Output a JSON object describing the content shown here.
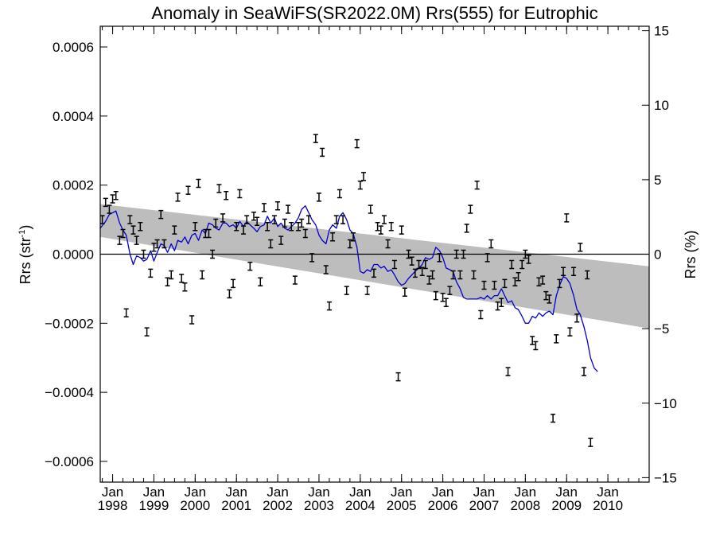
{
  "chart_data": {
    "type": "scatter",
    "title": "Anomaly in SeaWiFS(SR2022.0M) Rrs(555) for Eutrophic",
    "ylabel": "Rrs (str",
    "ylabel_sup": "-1",
    "ylabel_close": ")",
    "y2label": "Rrs (%)",
    "ylim": [
      -0.00066,
      0.00066
    ],
    "y2lim": [
      -15.3,
      15.3
    ],
    "xlim": [
      1997.7,
      2011.0
    ],
    "yticks": [
      -0.0006,
      -0.0004,
      -0.0002,
      0.0,
      0.0002,
      0.0004,
      0.0006
    ],
    "ytick_labels": [
      "−0.0006",
      "−0.0004",
      "−0.0002",
      "0.0000",
      "0.0002",
      "0.0004",
      "0.0006"
    ],
    "y2ticks": [
      -15,
      -10,
      -5,
      0,
      5,
      10,
      15
    ],
    "y2tick_labels": [
      "−15",
      "−10",
      "−5",
      "0",
      "5",
      "10",
      "15"
    ],
    "xticks": [
      1998,
      1999,
      2000,
      2001,
      2002,
      2003,
      2004,
      2005,
      2006,
      2007,
      2008,
      2009,
      2010
    ],
    "xtick_month": "Jan",
    "xtick_years": [
      "1998",
      "1999",
      "2000",
      "2001",
      "2002",
      "2003",
      "2004",
      "2005",
      "2006",
      "2007",
      "2008",
      "2009",
      "2010"
    ],
    "reference_line": 0.0,
    "error_half_width": 1.15e-05,
    "band": {
      "x": [
        1997.7,
        2011.0
      ],
      "upper": [
        0.000145,
        -3.5e-05
      ],
      "lower": [
        5e-05,
        -0.000215
      ]
    },
    "points": [
      [
        1997.75,
        0.0001
      ],
      [
        1997.83,
        0.00015
      ],
      [
        1997.92,
        0.00013
      ],
      [
        1998.0,
        0.00016
      ],
      [
        1998.08,
        0.00017
      ],
      [
        1998.17,
        4e-05
      ],
      [
        1998.25,
        6e-05
      ],
      [
        1998.33,
        -0.00017
      ],
      [
        1998.42,
        0.0001
      ],
      [
        1998.5,
        7e-05
      ],
      [
        1998.58,
        4e-05
      ],
      [
        1998.67,
        8e-05
      ],
      [
        1998.75,
        0.0
      ],
      [
        1998.83,
        -0.000225
      ],
      [
        1998.92,
        -5.5e-05
      ],
      [
        1999.0,
        2e-05
      ],
      [
        1999.08,
        3e-05
      ],
      [
        1999.17,
        0.000115
      ],
      [
        1999.25,
        3e-05
      ],
      [
        1999.33,
        -8e-05
      ],
      [
        1999.42,
        -6e-05
      ],
      [
        1999.5,
        7e-05
      ],
      [
        1999.58,
        0.000165
      ],
      [
        1999.67,
        -7e-05
      ],
      [
        1999.75,
        -9.5e-05
      ],
      [
        1999.83,
        0.000185
      ],
      [
        1999.92,
        -0.00019
      ],
      [
        2000.0,
        8e-05
      ],
      [
        2000.08,
        0.000205
      ],
      [
        2000.17,
        -6e-05
      ],
      [
        2000.25,
        6e-05
      ],
      [
        2000.33,
        6e-05
      ],
      [
        2000.42,
        0.0
      ],
      [
        2000.5,
        9e-05
      ],
      [
        2000.58,
        0.00019
      ],
      [
        2000.67,
        0.000105
      ],
      [
        2000.75,
        0.00017
      ],
      [
        2000.83,
        -0.000115
      ],
      [
        2000.92,
        -8.5e-05
      ],
      [
        2001.0,
        8e-05
      ],
      [
        2001.08,
        0.000175
      ],
      [
        2001.17,
        7e-05
      ],
      [
        2001.25,
        0.0001
      ],
      [
        2001.33,
        -3.5e-05
      ],
      [
        2001.42,
        0.00011
      ],
      [
        2001.5,
        9.5e-05
      ],
      [
        2001.58,
        -8e-05
      ],
      [
        2001.67,
        0.000135
      ],
      [
        2001.75,
        8e-05
      ],
      [
        2001.83,
        3e-05
      ],
      [
        2001.92,
        0.0001
      ],
      [
        2002.0,
        0.00014
      ],
      [
        2002.08,
        4e-05
      ],
      [
        2002.17,
        9e-05
      ],
      [
        2002.25,
        0.00013
      ],
      [
        2002.33,
        8e-05
      ],
      [
        2002.42,
        -7.5e-05
      ],
      [
        2002.5,
        8e-05
      ],
      [
        2002.58,
        9e-05
      ],
      [
        2002.67,
        6e-05
      ],
      [
        2002.75,
        0.0001
      ],
      [
        2002.83,
        -1e-05
      ],
      [
        2002.92,
        0.000335
      ],
      [
        2003.0,
        0.000165
      ],
      [
        2003.08,
        0.000295
      ],
      [
        2003.17,
        -4.5e-05
      ],
      [
        2003.25,
        -0.00015
      ],
      [
        2003.33,
        5e-05
      ],
      [
        2003.42,
        0.0001
      ],
      [
        2003.5,
        0.000175
      ],
      [
        2003.58,
        0.0001
      ],
      [
        2003.67,
        -0.000105
      ],
      [
        2003.75,
        3e-05
      ],
      [
        2003.83,
        5e-05
      ],
      [
        2003.92,
        0.00032
      ],
      [
        2004.0,
        0.0002
      ],
      [
        2004.08,
        0.000225
      ],
      [
        2004.17,
        -0.000105
      ],
      [
        2004.25,
        0.00013
      ],
      [
        2004.33,
        -5.5e-05
      ],
      [
        2004.42,
        8e-05
      ],
      [
        2004.5,
        7e-05
      ],
      [
        2004.58,
        0.0001
      ],
      [
        2004.67,
        3e-05
      ],
      [
        2004.75,
        8e-05
      ],
      [
        2004.83,
        -3e-05
      ],
      [
        2004.92,
        -0.000355
      ],
      [
        2005.0,
        7e-05
      ],
      [
        2005.08,
        -0.00011
      ],
      [
        2005.17,
        0.0
      ],
      [
        2005.25,
        -2e-05
      ],
      [
        2005.33,
        -5.5e-05
      ],
      [
        2005.42,
        -3e-05
      ],
      [
        2005.5,
        -5e-05
      ],
      [
        2005.58,
        -3e-05
      ],
      [
        2005.67,
        -7.5e-05
      ],
      [
        2005.75,
        -6e-05
      ],
      [
        2005.83,
        -0.00012
      ],
      [
        2005.92,
        -1e-05
      ],
      [
        2006.0,
        -0.000125
      ],
      [
        2006.08,
        -0.00014
      ],
      [
        2006.17,
        -0.000105
      ],
      [
        2006.25,
        -6e-05
      ],
      [
        2006.33,
        0.0
      ],
      [
        2006.42,
        -6e-05
      ],
      [
        2006.5,
        0.0
      ],
      [
        2006.58,
        7.5e-05
      ],
      [
        2006.67,
        0.00013
      ],
      [
        2006.75,
        -6e-05
      ],
      [
        2006.83,
        0.0002
      ],
      [
        2006.92,
        -0.000175
      ],
      [
        2007.0,
        -9e-05
      ],
      [
        2007.08,
        -1e-05
      ],
      [
        2007.17,
        3e-05
      ],
      [
        2007.25,
        -9e-05
      ],
      [
        2007.33,
        -0.00015
      ],
      [
        2007.42,
        -0.00014
      ],
      [
        2007.5,
        -8.5e-05
      ],
      [
        2007.58,
        -0.00034
      ],
      [
        2007.67,
        -3e-05
      ],
      [
        2007.75,
        -8e-05
      ],
      [
        2007.83,
        -6.5e-05
      ],
      [
        2007.92,
        -3e-05
      ],
      [
        2008.0,
        0.0
      ],
      [
        2008.08,
        -1.5e-05
      ],
      [
        2008.17,
        -0.00025
      ],
      [
        2008.25,
        -0.000265
      ],
      [
        2008.33,
        -8e-05
      ],
      [
        2008.42,
        -7.5e-05
      ],
      [
        2008.5,
        -0.00012
      ],
      [
        2008.58,
        -0.00013
      ],
      [
        2008.67,
        -0.000475
      ],
      [
        2008.75,
        -0.000245
      ],
      [
        2008.83,
        -8.5e-05
      ],
      [
        2008.92,
        -5e-05
      ],
      [
        2009.0,
        0.000105
      ],
      [
        2009.08,
        -0.000225
      ],
      [
        2009.17,
        -5e-05
      ],
      [
        2009.25,
        -0.000185
      ],
      [
        2009.33,
        2e-05
      ],
      [
        2009.42,
        -0.00034
      ],
      [
        2009.5,
        -6e-05
      ],
      [
        2009.58,
        -0.000545
      ]
    ],
    "trend_line": [
      [
        1997.7,
        7.5e-05
      ],
      [
        1997.83,
        9.5e-05
      ],
      [
        1997.92,
        0.000115
      ],
      [
        1998.0,
        0.00012
      ],
      [
        1998.08,
        0.000125
      ],
      [
        1998.17,
        9e-05
      ],
      [
        1998.25,
        7e-05
      ],
      [
        1998.33,
        5.5e-05
      ],
      [
        1998.42,
        0.0
      ],
      [
        1998.5,
        -3e-05
      ],
      [
        1998.58,
        -5e-06
      ],
      [
        1998.67,
        -1e-05
      ],
      [
        1998.75,
        -2e-05
      ],
      [
        1998.83,
        -1.5e-05
      ],
      [
        1998.92,
        1e-05
      ],
      [
        1999.0,
        -2e-05
      ],
      [
        1999.08,
        5e-06
      ],
      [
        1999.17,
        3e-05
      ],
      [
        1999.25,
        2.5e-05
      ],
      [
        1999.33,
        5e-06
      ],
      [
        1999.42,
        3e-05
      ],
      [
        1999.5,
        1e-05
      ],
      [
        1999.58,
        4e-05
      ],
      [
        1999.67,
        3.5e-05
      ],
      [
        1999.75,
        5e-05
      ],
      [
        1999.83,
        3e-05
      ],
      [
        1999.92,
        5.5e-05
      ],
      [
        2000.0,
        6e-05
      ],
      [
        2000.08,
        4e-05
      ],
      [
        2000.17,
        7e-05
      ],
      [
        2000.25,
        6e-05
      ],
      [
        2000.33,
        9e-05
      ],
      [
        2000.42,
        8.5e-05
      ],
      [
        2000.5,
        7.5e-05
      ],
      [
        2000.58,
        7e-05
      ],
      [
        2000.67,
        9e-05
      ],
      [
        2000.75,
        9e-05
      ],
      [
        2000.83,
        8e-05
      ],
      [
        2000.92,
        8.5e-05
      ],
      [
        2001.0,
        7.5e-05
      ],
      [
        2001.08,
        9.5e-05
      ],
      [
        2001.17,
        8e-05
      ],
      [
        2001.25,
        9.5e-05
      ],
      [
        2001.33,
        8.5e-05
      ],
      [
        2001.42,
        7.5e-05
      ],
      [
        2001.5,
        6.5e-05
      ],
      [
        2001.58,
        8e-05
      ],
      [
        2001.67,
        8.5e-05
      ],
      [
        2001.75,
        0.00011
      ],
      [
        2001.83,
        9e-05
      ],
      [
        2001.92,
        0.000105
      ],
      [
        2002.0,
        8e-05
      ],
      [
        2002.08,
        9e-05
      ],
      [
        2002.17,
        7.5e-05
      ],
      [
        2002.25,
        7e-05
      ],
      [
        2002.33,
        8e-05
      ],
      [
        2002.42,
        9e-05
      ],
      [
        2002.5,
        0.000105
      ],
      [
        2002.58,
        0.00013
      ],
      [
        2002.67,
        0.00014
      ],
      [
        2002.75,
        0.00012
      ],
      [
        2002.83,
        0.0001
      ],
      [
        2002.92,
        8.5e-05
      ],
      [
        2003.0,
        5.5e-05
      ],
      [
        2003.08,
        4e-05
      ],
      [
        2003.17,
        3e-05
      ],
      [
        2003.25,
        7e-05
      ],
      [
        2003.33,
        8.5e-05
      ],
      [
        2003.42,
        7.5e-05
      ],
      [
        2003.5,
        0.00011
      ],
      [
        2003.58,
        0.00012
      ],
      [
        2003.67,
        0.0001
      ],
      [
        2003.75,
        7e-05
      ],
      [
        2003.83,
        6e-05
      ],
      [
        2003.92,
        2e-05
      ],
      [
        2004.0,
        -5e-05
      ],
      [
        2004.08,
        -5.5e-05
      ],
      [
        2004.17,
        -4.5e-05
      ],
      [
        2004.25,
        -5e-05
      ],
      [
        2004.33,
        -3e-05
      ],
      [
        2004.42,
        -3e-05
      ],
      [
        2004.5,
        -4e-05
      ],
      [
        2004.58,
        -3.5e-05
      ],
      [
        2004.67,
        -5e-05
      ],
      [
        2004.75,
        -4.5e-05
      ],
      [
        2004.83,
        -6e-05
      ],
      [
        2004.92,
        -8e-05
      ],
      [
        2005.0,
        -9e-05
      ],
      [
        2005.08,
        -8.5e-05
      ],
      [
        2005.17,
        -7e-05
      ],
      [
        2005.25,
        -6e-05
      ],
      [
        2005.33,
        -5e-05
      ],
      [
        2005.42,
        -4e-05
      ],
      [
        2005.5,
        -3e-05
      ],
      [
        2005.58,
        -1e-05
      ],
      [
        2005.67,
        -1.5e-05
      ],
      [
        2005.75,
        -1e-05
      ],
      [
        2005.83,
        2e-05
      ],
      [
        2005.92,
        1e-05
      ],
      [
        2006.0,
        -1e-05
      ],
      [
        2006.08,
        -4e-05
      ],
      [
        2006.17,
        -4.5e-05
      ],
      [
        2006.25,
        -5e-05
      ],
      [
        2006.33,
        -8e-05
      ],
      [
        2006.42,
        -0.0001
      ],
      [
        2006.5,
        -0.000125
      ],
      [
        2006.58,
        -0.00013
      ],
      [
        2006.67,
        -0.00013
      ],
      [
        2006.75,
        -0.00013
      ],
      [
        2006.83,
        -0.00013
      ],
      [
        2006.92,
        -0.000125
      ],
      [
        2007.0,
        -0.00013
      ],
      [
        2007.08,
        -0.00012
      ],
      [
        2007.17,
        -0.00013
      ],
      [
        2007.25,
        -0.00012
      ],
      [
        2007.33,
        -0.00012
      ],
      [
        2007.42,
        -0.0001
      ],
      [
        2007.5,
        -0.00012
      ],
      [
        2007.58,
        -0.00014
      ],
      [
        2007.67,
        -0.000135
      ],
      [
        2007.75,
        -0.000155
      ],
      [
        2007.83,
        -0.00016
      ],
      [
        2007.92,
        -0.00018
      ],
      [
        2008.0,
        -0.0002
      ],
      [
        2008.08,
        -0.0002
      ],
      [
        2008.17,
        -0.00018
      ],
      [
        2008.25,
        -0.000185
      ],
      [
        2008.33,
        -0.00017
      ],
      [
        2008.42,
        -0.00018
      ],
      [
        2008.5,
        -0.00017
      ],
      [
        2008.58,
        -0.000165
      ],
      [
        2008.67,
        -0.000175
      ],
      [
        2008.75,
        -0.00012
      ],
      [
        2008.83,
        -9e-05
      ],
      [
        2008.92,
        -6.5e-05
      ],
      [
        2009.0,
        -7e-05
      ],
      [
        2009.08,
        -8.5e-05
      ],
      [
        2009.17,
        -0.00012
      ],
      [
        2009.25,
        -0.00016
      ],
      [
        2009.33,
        -0.000175
      ],
      [
        2009.42,
        -0.00021
      ],
      [
        2009.5,
        -0.00025
      ],
      [
        2009.58,
        -0.0003
      ],
      [
        2009.67,
        -0.00033
      ],
      [
        2009.75,
        -0.00034
      ]
    ],
    "colors": {
      "points": "#000000",
      "trend_line": "#0000cc",
      "band": "#bdbdbd",
      "reference_line": "#000000",
      "frame": "#000000",
      "background": "#ffffff"
    }
  }
}
